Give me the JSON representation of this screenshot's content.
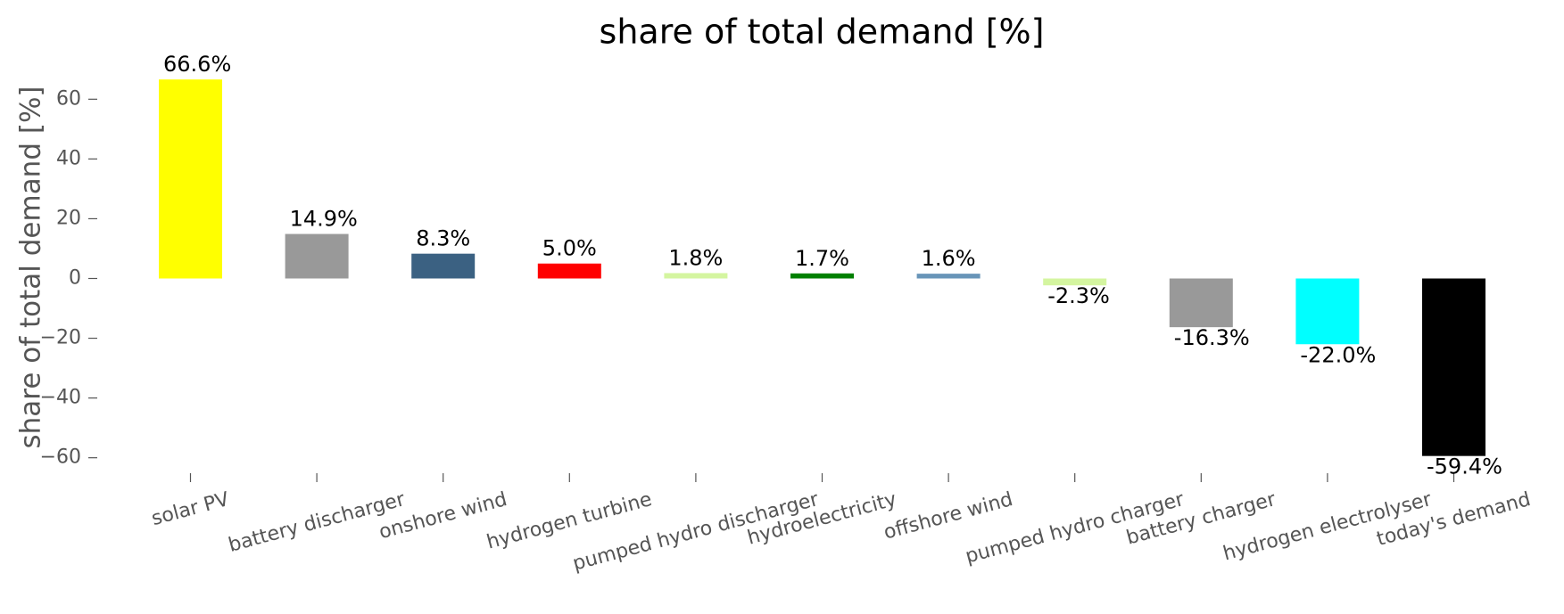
{
  "chart_data": {
    "type": "bar",
    "title": "share of total demand [%]",
    "ylabel": "share of total demand [%]",
    "categories": [
      "solar PV",
      "battery discharger",
      "onshore wind",
      "hydrogen turbine",
      "pumped hydro discharger",
      "hydroelectricity",
      "offshore wind",
      "pumped hydro charger",
      "battery charger",
      "hydrogen electrolyser",
      "today's demand"
    ],
    "values": [
      66.6,
      14.9,
      8.3,
      5.0,
      1.8,
      1.7,
      1.6,
      -2.3,
      -16.3,
      -22.0,
      -59.4
    ],
    "value_labels": [
      "66.6%",
      "14.9%",
      "8.3%",
      "5.0%",
      "1.8%",
      "1.7%",
      "1.6%",
      "-2.3%",
      "-16.3%",
      "-22.0%",
      "-59.4%"
    ],
    "colors": [
      "#ffff00",
      "#999999",
      "#3b6182",
      "#ff0000",
      "#d4f5a0",
      "#008000",
      "#6895b8",
      "#d4f5a0",
      "#999999",
      "#00ffff",
      "#000000"
    ],
    "ylim": [
      -66,
      70
    ],
    "yticks": [
      {
        "value": -60,
        "label": "−60"
      },
      {
        "value": -40,
        "label": "−40"
      },
      {
        "value": -20,
        "label": "−20"
      },
      0,
      20,
      40,
      60
    ],
    "grid": false
  }
}
